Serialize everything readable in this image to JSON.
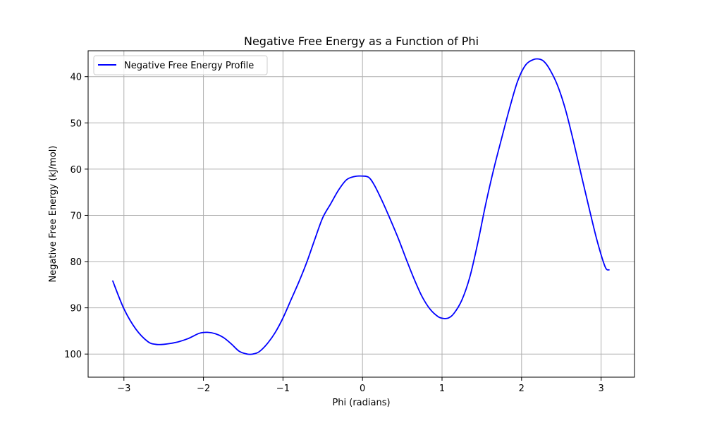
{
  "chart_data": {
    "type": "line",
    "title": "Negative Free Energy as a Function of Phi",
    "xlabel": "Phi (radians)",
    "ylabel": "Negative Free Energy (kJ/mol)",
    "xlim": [
      -3.45,
      3.42
    ],
    "ylim": [
      105,
      34.4
    ],
    "y_axis_inverted": true,
    "grid": true,
    "legend_position": "upper-left",
    "xticks": [
      -3,
      -2,
      -1,
      0,
      1,
      2,
      3
    ],
    "xtick_labels": [
      "−3",
      "−2",
      "−1",
      "0",
      "1",
      "2",
      "3"
    ],
    "yticks": [
      40,
      50,
      60,
      70,
      80,
      90,
      100
    ],
    "ytick_labels": [
      "40",
      "50",
      "60",
      "70",
      "80",
      "90",
      "100"
    ],
    "series": [
      {
        "name": "Negative Free Energy Profile",
        "color": "#0000ff",
        "x": [
          -3.14,
          -3.0,
          -2.85,
          -2.7,
          -2.6,
          -2.5,
          -2.35,
          -2.2,
          -2.05,
          -1.95,
          -1.85,
          -1.75,
          -1.65,
          -1.55,
          -1.45,
          -1.38,
          -1.3,
          -1.2,
          -1.1,
          -1.0,
          -0.9,
          -0.8,
          -0.7,
          -0.6,
          -0.5,
          -0.4,
          -0.3,
          -0.2,
          -0.1,
          0.0,
          0.08,
          0.15,
          0.25,
          0.35,
          0.45,
          0.55,
          0.65,
          0.75,
          0.85,
          0.95,
          1.02,
          1.08,
          1.15,
          1.25,
          1.35,
          1.45,
          1.55,
          1.65,
          1.75,
          1.85,
          1.95,
          2.05,
          2.15,
          2.22,
          2.28,
          2.35,
          2.45,
          2.55,
          2.65,
          2.75,
          2.85,
          2.95,
          3.05,
          3.1
        ],
        "y": [
          84.2,
          90.2,
          94.6,
          97.3,
          97.9,
          97.9,
          97.5,
          96.7,
          95.5,
          95.3,
          95.6,
          96.4,
          97.8,
          99.4,
          100.0,
          100.0,
          99.5,
          97.8,
          95.4,
          92.2,
          88.3,
          84.4,
          80.1,
          75.2,
          70.5,
          67.5,
          64.5,
          62.3,
          61.6,
          61.5,
          61.8,
          63.5,
          67.0,
          70.9,
          75.0,
          79.5,
          83.8,
          87.6,
          90.3,
          91.9,
          92.3,
          92.2,
          91.2,
          88.3,
          83.3,
          75.9,
          67.5,
          60.0,
          53.3,
          46.8,
          41.0,
          37.5,
          36.3,
          36.2,
          36.7,
          38.3,
          41.8,
          47.0,
          53.8,
          61.2,
          68.5,
          75.5,
          81.1,
          81.8
        ]
      }
    ]
  }
}
